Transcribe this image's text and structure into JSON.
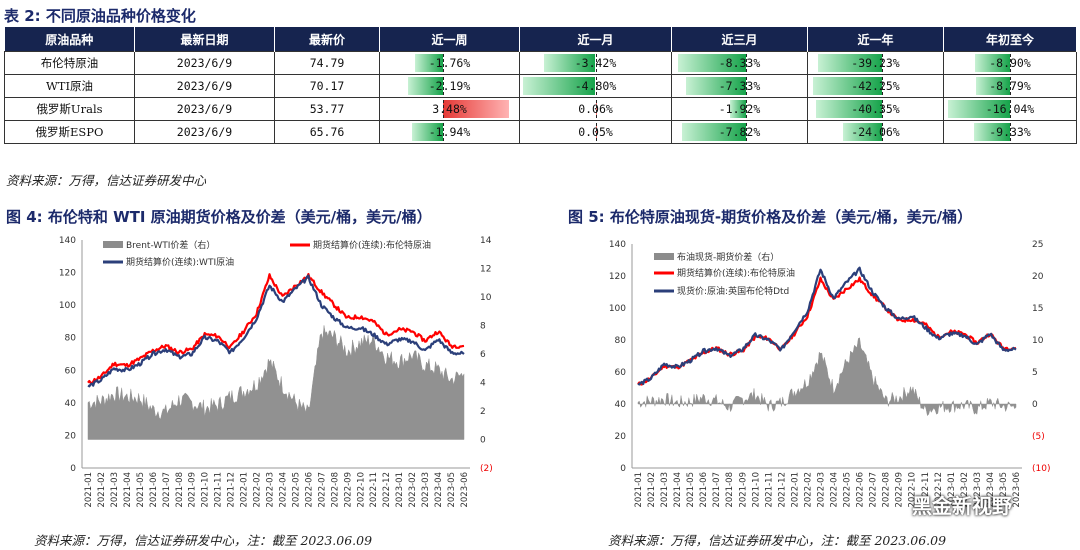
{
  "table": {
    "title": "表 2:  不同原油品种价格变化",
    "headers": [
      "原油品种",
      "最新日期",
      "最新价",
      "近一周",
      "近一月",
      "近三月",
      "近一年",
      "年初至今"
    ],
    "rows": [
      {
        "name": "布伦特原油",
        "date": "2023/6/9",
        "price": "74.79",
        "w": "-1.76%",
        "m": "-3.42%",
        "q": "-8.33%",
        "y": "-39.23%",
        "ytd": "-8.90%",
        "wv": -1.76,
        "mv": -3.42,
        "qv": -8.33,
        "yv": -39.23,
        "ytdv": -8.9
      },
      {
        "name": "WTI原油",
        "date": "2023/6/9",
        "price": "70.17",
        "w": "-2.19%",
        "m": "-4.80%",
        "q": "-7.33%",
        "y": "-42.25%",
        "ytd": "-8.79%",
        "wv": -2.19,
        "mv": -4.8,
        "qv": -7.33,
        "yv": -42.25,
        "ytdv": -8.79
      },
      {
        "name": "俄罗斯Urals",
        "date": "2023/6/9",
        "price": "53.77",
        "w": "3.48%",
        "m": "0.06%",
        "q": "-1.92%",
        "y": "-40.35%",
        "ytd": "-16.04%",
        "wv": 3.48,
        "mv": 0.06,
        "qv": -1.92,
        "yv": -40.35,
        "ytdv": -16.04
      },
      {
        "name": "俄罗斯ESPO",
        "date": "2023/6/9",
        "price": "65.76",
        "w": "-1.94%",
        "m": "0.05%",
        "q": "-7.82%",
        "y": "-24.06%",
        "ytd": "-9.33%",
        "wv": -1.94,
        "mv": 0.05,
        "qv": -7.82,
        "yv": -24.06,
        "ytdv": -9.33
      }
    ],
    "source": "资料来源：万得，信达证券研发中心"
  },
  "chart_left": {
    "fig_title": "图 4:  布伦特和 WTI 原油期货价格及价差（美元/桶，美元/桶）",
    "source": "资料来源：万得，信达证券研发中心，注：截至 2023.06.09",
    "chart_data": {
      "type": "line",
      "legend": [
        "Brent-WTI价差（右）",
        "期货结算价(连续):布伦特原油",
        "期货结算价(连续):WTI原油"
      ],
      "legend_placement": "top",
      "y_left": {
        "min": 0,
        "max": 140,
        "ticks": [
          "0",
          "20",
          "40",
          "60",
          "80",
          "100",
          "120",
          "140"
        ]
      },
      "y_right": {
        "min": -2,
        "max": 14,
        "ticks": [
          "(2)",
          "0",
          "2",
          "4",
          "6",
          "8",
          "10",
          "12",
          "14"
        ]
      },
      "x_ticks": [
        "2021-01",
        "2021-02",
        "2021-03",
        "2021-04",
        "2021-05",
        "2021-06",
        "2021-07",
        "2021-08",
        "2021-09",
        "2021-10",
        "2021-11",
        "2021-12",
        "2022-01",
        "2022-02",
        "2022-03",
        "2022-04",
        "2022-05",
        "2022-06",
        "2022-07",
        "2022-08",
        "2022-09",
        "2022-10",
        "2022-11",
        "2022-12",
        "2023-01",
        "2023-02",
        "2023-03",
        "2023-04",
        "2023-05",
        "2023-06"
      ],
      "series": [
        {
          "name": "期货结算价(连续):布伦特原油",
          "color": "#ff0000",
          "values": [
            52,
            56,
            64,
            63,
            67,
            72,
            75,
            71,
            73,
            82,
            81,
            74,
            84,
            95,
            118,
            105,
            112,
            118,
            108,
            100,
            92,
            93,
            90,
            82,
            85,
            84,
            78,
            84,
            75,
            75
          ]
        },
        {
          "name": "期货结算价(连续):WTI原油",
          "color": "#2b3f7a",
          "values": [
            50,
            54,
            61,
            60,
            64,
            70,
            73,
            68,
            70,
            80,
            78,
            71,
            80,
            92,
            112,
            102,
            110,
            117,
            100,
            92,
            86,
            86,
            82,
            76,
            79,
            78,
            72,
            79,
            71,
            70
          ]
        },
        {
          "name": "Brent-WTI价差（右）",
          "color": "#8c8c8c",
          "values": [
            2.6,
            2.7,
            3.2,
            3.0,
            2.9,
            2.1,
            1.9,
            2.8,
            2.6,
            2.2,
            2.4,
            3.0,
            3.4,
            3.9,
            5.5,
            3.8,
            2.6,
            1.8,
            7.5,
            7.2,
            6.2,
            6.8,
            7.0,
            5.8,
            5.5,
            5.9,
            5.2,
            4.9,
            4.2,
            4.6
          ]
        }
      ]
    }
  },
  "chart_right": {
    "fig_title": "图 5:  布伦特原油现货-期货价格及价差（美元/桶，美元/桶）",
    "source": "资料来源：万得，信达证券研发中心，注：截至 2023.06.09",
    "chart_data": {
      "type": "line",
      "legend": [
        "布油现货-期货价差（右）",
        "期货结算价(连续):布伦特原油",
        "现货价:原油:英国布伦特Dtd"
      ],
      "legend_placement": "top-left",
      "y_left": {
        "min": 0,
        "max": 140,
        "ticks": [
          "0",
          "20",
          "40",
          "60",
          "80",
          "100",
          "120",
          "140"
        ]
      },
      "y_right": {
        "min": -10,
        "max": 25,
        "ticks": [
          "(10)",
          "(5)",
          "0",
          "5",
          "10",
          "15",
          "20",
          "25"
        ]
      },
      "x_ticks": [
        "2021-01",
        "2021-02",
        "2021-03",
        "2021-04",
        "2021-05",
        "2021-06",
        "2021-07",
        "2021-08",
        "2021-09",
        "2021-10",
        "2021-11",
        "2021-12",
        "2022-01",
        "2022-02",
        "2022-03",
        "2022-04",
        "2022-05",
        "2022-06",
        "2022-07",
        "2022-08",
        "2022-09",
        "2022-10",
        "2022-11",
        "2022-12",
        "2023-01",
        "2023-02",
        "2023-03",
        "2023-04",
        "2023-05",
        "2023-06"
      ],
      "series": [
        {
          "name": "期货结算价(连续):布伦特原油",
          "color": "#ff0000",
          "values": [
            52,
            56,
            64,
            63,
            67,
            72,
            75,
            71,
            73,
            82,
            81,
            74,
            84,
            95,
            118,
            105,
            112,
            118,
            108,
            100,
            92,
            93,
            90,
            82,
            85,
            84,
            78,
            84,
            75,
            75
          ]
        },
        {
          "name": "现货价:原油:英国布伦特Dtd",
          "color": "#2b3f7a",
          "values": [
            52,
            56,
            65,
            63,
            67,
            73,
            75,
            70,
            74,
            83,
            80,
            74,
            86,
            98,
            124,
            106,
            116,
            124,
            110,
            100,
            93,
            95,
            88,
            81,
            84,
            83,
            77,
            84,
            74,
            74
          ]
        },
        {
          "name": "布油现货-期货价差（右）",
          "color": "#8c8c8c",
          "values": [
            0.3,
            0.5,
            0.8,
            0.2,
            0.4,
            1.0,
            0.5,
            -0.5,
            0.8,
            1.5,
            -0.3,
            0.2,
            2.0,
            3.5,
            8.0,
            2.5,
            6.5,
            9.5,
            4.0,
            0.5,
            1.0,
            2.5,
            -1.0,
            -0.5,
            -0.3,
            -0.2,
            -0.8,
            0.2,
            -0.3,
            -0.5
          ]
        }
      ]
    }
  },
  "watermark": "黑金新视野"
}
